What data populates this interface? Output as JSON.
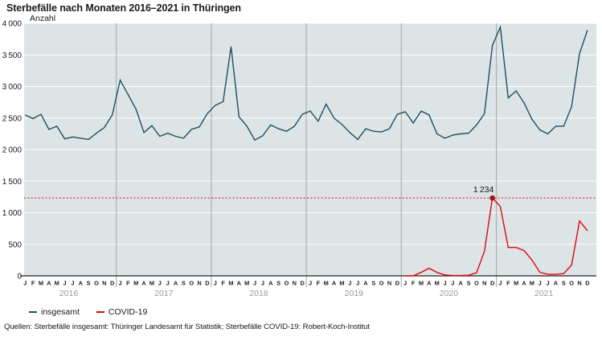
{
  "title": "Sterbefälle nach Monaten 2016–2021 in Thüringen",
  "source": "Quellen: Sterbefälle insgesamt: Thüringer Landesamt für Statistik; Sterbefälle COVID-19: Robert-Koch-Institut",
  "legend": {
    "items": [
      {
        "label": "insgesamt",
        "color": "#1f4f63"
      },
      {
        "label": "COVID-19",
        "color": "#e30613"
      }
    ]
  },
  "axis": {
    "unit_label": "Anzahl",
    "y_ticks": [
      {
        "value": 0,
        "label": "0"
      },
      {
        "value": 500,
        "label": "500"
      },
      {
        "value": 1000,
        "label": "1 000"
      },
      {
        "value": 1500,
        "label": "1 500"
      },
      {
        "value": 2000,
        "label": "2 000"
      },
      {
        "value": 2500,
        "label": "2 500"
      },
      {
        "value": 3000,
        "label": "3 000"
      },
      {
        "value": 3500,
        "label": "3 500"
      },
      {
        "value": 4000,
        "label": "4 000"
      }
    ]
  },
  "colors": {
    "plot_background": "#dde4e6",
    "gridline": "#ffffff",
    "year_separator": "#b0b0b0",
    "axis_line": "#222222",
    "year_label": "#999999",
    "month_label": "#1a1a1a",
    "reference_line": "#e30613",
    "marker": "#a3131f"
  },
  "chart_data": {
    "type": "line",
    "x_unit": "month",
    "years": [
      "2016",
      "2017",
      "2018",
      "2019",
      "2020",
      "2021"
    ],
    "month_letters": [
      "J",
      "F",
      "M",
      "A",
      "M",
      "J",
      "J",
      "A",
      "S",
      "O",
      "N",
      "D"
    ],
    "ylim": [
      0,
      4000
    ],
    "y_tick_step": 500,
    "grid": "horizontal",
    "legend_position": "bottom-left",
    "series": [
      {
        "name": "insgesamt",
        "color": "#1f4f63",
        "values": [
          2550,
          2490,
          2560,
          2320,
          2370,
          2170,
          2200,
          2180,
          2160,
          2260,
          2350,
          2550,
          3100,
          2870,
          2640,
          2270,
          2380,
          2210,
          2260,
          2210,
          2180,
          2320,
          2360,
          2570,
          2700,
          2760,
          3630,
          2520,
          2370,
          2150,
          2220,
          2390,
          2330,
          2290,
          2370,
          2560,
          2610,
          2450,
          2720,
          2500,
          2400,
          2270,
          2160,
          2330,
          2290,
          2280,
          2330,
          2560,
          2600,
          2420,
          2610,
          2550,
          2250,
          2180,
          2230,
          2250,
          2260,
          2390,
          2570,
          3650,
          3940,
          2820,
          2930,
          2740,
          2480,
          2310,
          2250,
          2370,
          2370,
          2680,
          3520,
          3890
        ]
      },
      {
        "name": "COVID-19",
        "color": "#e30613",
        "values": [
          null,
          null,
          null,
          null,
          null,
          null,
          null,
          null,
          null,
          null,
          null,
          null,
          null,
          null,
          null,
          null,
          null,
          null,
          null,
          null,
          null,
          null,
          null,
          null,
          null,
          null,
          null,
          null,
          null,
          null,
          null,
          null,
          null,
          null,
          null,
          null,
          null,
          null,
          null,
          null,
          null,
          null,
          null,
          null,
          null,
          null,
          null,
          null,
          0,
          0,
          55,
          120,
          55,
          15,
          5,
          5,
          10,
          50,
          390,
          1234,
          1100,
          450,
          450,
          400,
          250,
          55,
          25,
          25,
          35,
          170,
          870,
          715
        ]
      }
    ],
    "reference_line": {
      "value": 1234,
      "style": "dotted",
      "color": "#e30613"
    },
    "annotation": {
      "label": "1 234",
      "series": "COVID-19",
      "year": "2020",
      "month": "D",
      "index": 59,
      "marker_color": "#a3131f"
    }
  }
}
